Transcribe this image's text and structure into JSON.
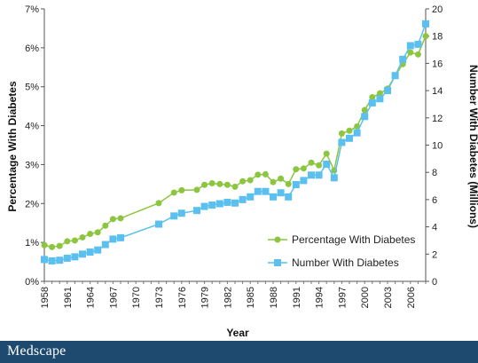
{
  "chart_data": {
    "type": "line",
    "title": "",
    "xlabel": "Year",
    "ylabel_left": "Percentage With Diabetes",
    "ylabel_right": "Number With Diabetes (Millions)",
    "x_tick_labels": [
      "1958",
      "1961",
      "1964",
      "1967",
      "1970",
      "1973",
      "1976",
      "1979",
      "1982",
      "1985",
      "1988",
      "1991",
      "1994",
      "1997",
      "2000",
      "2003",
      "2006"
    ],
    "y_left_ticks": [
      "0%",
      "1%",
      "2%",
      "3%",
      "4%",
      "5%",
      "6%",
      "7%"
    ],
    "y_right_ticks": [
      "0",
      "2",
      "4",
      "6",
      "8",
      "10",
      "12",
      "14",
      "16",
      "18",
      "20"
    ],
    "y_left_range": [
      0,
      7
    ],
    "y_right_range": [
      0,
      20
    ],
    "x_range": [
      1958,
      2008
    ],
    "legend_position": "bottom-right",
    "series": [
      {
        "name": "Percentage With Diabetes",
        "axis": "left",
        "color": "#8cc63f",
        "marker": "circle",
        "points": [
          [
            1958,
            0.93
          ],
          [
            1959,
            0.88
          ],
          [
            1960,
            0.91
          ],
          [
            1961,
            1.03
          ],
          [
            1962,
            1.05
          ],
          [
            1963,
            1.13
          ],
          [
            1964,
            1.22
          ],
          [
            1965,
            1.26
          ],
          [
            1966,
            1.43
          ],
          [
            1967,
            1.6
          ],
          [
            1968,
            1.62
          ],
          [
            1973,
            2.01
          ],
          [
            1975,
            2.28
          ],
          [
            1976,
            2.34
          ],
          [
            1978,
            2.35
          ],
          [
            1979,
            2.48
          ],
          [
            1980,
            2.52
          ],
          [
            1981,
            2.5
          ],
          [
            1982,
            2.48
          ],
          [
            1983,
            2.43
          ],
          [
            1984,
            2.57
          ],
          [
            1985,
            2.6
          ],
          [
            1986,
            2.74
          ],
          [
            1987,
            2.75
          ],
          [
            1988,
            2.55
          ],
          [
            1989,
            2.64
          ],
          [
            1990,
            2.5
          ],
          [
            1991,
            2.88
          ],
          [
            1992,
            2.9
          ],
          [
            1993,
            3.05
          ],
          [
            1994,
            2.98
          ],
          [
            1995,
            3.28
          ],
          [
            1996,
            2.85
          ],
          [
            1997,
            3.8
          ],
          [
            1998,
            3.87
          ],
          [
            1999,
            3.98
          ],
          [
            2000,
            4.4
          ],
          [
            2001,
            4.73
          ],
          [
            2002,
            4.83
          ],
          [
            2003,
            4.95
          ],
          [
            2004,
            5.28
          ],
          [
            2005,
            5.58
          ],
          [
            2006,
            5.88
          ],
          [
            2007,
            5.83
          ],
          [
            2008,
            6.3
          ]
        ]
      },
      {
        "name": "Number With Diabetes",
        "axis": "right",
        "color": "#5bc0f0",
        "marker": "square",
        "points": [
          [
            1958,
            1.6
          ],
          [
            1959,
            1.5
          ],
          [
            1960,
            1.55
          ],
          [
            1961,
            1.7
          ],
          [
            1962,
            1.8
          ],
          [
            1963,
            2.0
          ],
          [
            1964,
            2.15
          ],
          [
            1965,
            2.3
          ],
          [
            1966,
            2.7
          ],
          [
            1967,
            3.1
          ],
          [
            1968,
            3.2
          ],
          [
            1973,
            4.2
          ],
          [
            1975,
            4.8
          ],
          [
            1976,
            5.0
          ],
          [
            1978,
            5.2
          ],
          [
            1979,
            5.5
          ],
          [
            1980,
            5.6
          ],
          [
            1981,
            5.7
          ],
          [
            1982,
            5.8
          ],
          [
            1983,
            5.75
          ],
          [
            1984,
            6.0
          ],
          [
            1985,
            6.2
          ],
          [
            1986,
            6.6
          ],
          [
            1987,
            6.6
          ],
          [
            1988,
            6.2
          ],
          [
            1989,
            6.5
          ],
          [
            1990,
            6.2
          ],
          [
            1991,
            7.1
          ],
          [
            1992,
            7.4
          ],
          [
            1993,
            7.8
          ],
          [
            1994,
            7.8
          ],
          [
            1995,
            8.6
          ],
          [
            1996,
            7.6
          ],
          [
            1997,
            10.2
          ],
          [
            1998,
            10.5
          ],
          [
            1999,
            10.9
          ],
          [
            2000,
            12.1
          ],
          [
            2001,
            13.1
          ],
          [
            2002,
            13.4
          ],
          [
            2003,
            14.0
          ],
          [
            2004,
            15.1
          ],
          [
            2005,
            16.3
          ],
          [
            2006,
            17.3
          ],
          [
            2007,
            17.4
          ],
          [
            2008,
            18.9
          ]
        ]
      }
    ]
  },
  "footer": {
    "brand": "Medscape"
  }
}
